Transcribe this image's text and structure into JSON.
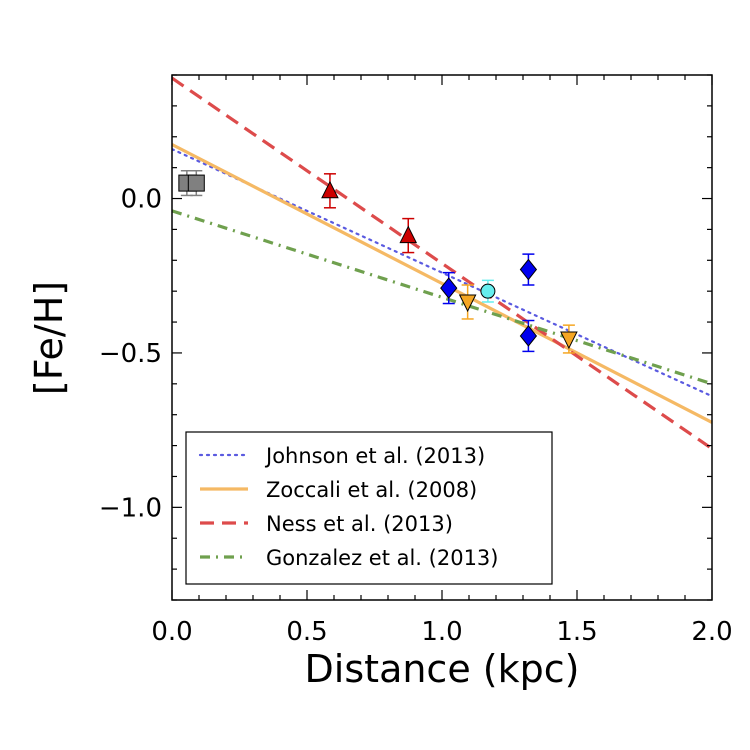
{
  "chart_data": {
    "type": "scatter",
    "xlabel": "Distance (kpc)",
    "ylabel": "[Fe/H]",
    "xlim": [
      0.0,
      2.0
    ],
    "ylim": [
      -1.3,
      0.4
    ],
    "x_ticks": [
      "0.0",
      "0.5",
      "1.0",
      "1.5",
      "2.0"
    ],
    "x_tick_values": [
      0.0,
      0.5,
      1.0,
      1.5,
      2.0
    ],
    "y_ticks": [
      "0.0",
      "−0.5",
      "−1.0"
    ],
    "y_tick_values": [
      0.0,
      -0.5,
      -1.0
    ],
    "legend_position": "lower-left",
    "lines": [
      {
        "name": "Johnson et al. (2013)",
        "style": "dotted",
        "color": "#5a5ae0",
        "x": [
          0.0,
          2.0
        ],
        "y": [
          0.16,
          -0.64
        ]
      },
      {
        "name": "Zoccali et al. (2008)",
        "style": "solid",
        "color": "#f5b964",
        "x": [
          0.0,
          2.0
        ],
        "y": [
          0.175,
          -0.725
        ]
      },
      {
        "name": "Ness et al. (2013)",
        "style": "dashed",
        "color": "#dd4b4b",
        "x": [
          0.0,
          2.0
        ],
        "y": [
          0.39,
          -0.81
        ]
      },
      {
        "name": "Gonzalez et al. (2013)",
        "style": "dashdot",
        "color": "#6fa04e",
        "x": [
          0.0,
          2.0
        ],
        "y": [
          -0.04,
          -0.6
        ]
      }
    ],
    "points": [
      {
        "marker": "square",
        "color": "#808080",
        "x": 0.055,
        "y": 0.05,
        "err": 0.04
      },
      {
        "marker": "square",
        "color": "#808080",
        "x": 0.09,
        "y": 0.05,
        "err": 0.04
      },
      {
        "marker": "triangle-up",
        "color": "#cc0000",
        "x": 0.585,
        "y": 0.025,
        "err": 0.055
      },
      {
        "marker": "triangle-up",
        "color": "#cc0000",
        "x": 0.875,
        "y": -0.12,
        "err": 0.055
      },
      {
        "marker": "diamond",
        "color": "#0000ee",
        "x": 1.025,
        "y": -0.29,
        "err": 0.05
      },
      {
        "marker": "triangle-down",
        "color": "#f5a623",
        "x": 1.095,
        "y": -0.335,
        "err": 0.055
      },
      {
        "marker": "circle",
        "color": "#66eeee",
        "x": 1.17,
        "y": -0.3,
        "err": 0.035
      },
      {
        "marker": "diamond",
        "color": "#0000ee",
        "x": 1.32,
        "y": -0.23,
        "err": 0.05
      },
      {
        "marker": "diamond",
        "color": "#0000ee",
        "x": 1.32,
        "y": -0.445,
        "err": 0.05
      },
      {
        "marker": "triangle-down",
        "color": "#f5a623",
        "x": 1.47,
        "y": -0.455,
        "err": 0.045
      }
    ],
    "grid": false
  }
}
